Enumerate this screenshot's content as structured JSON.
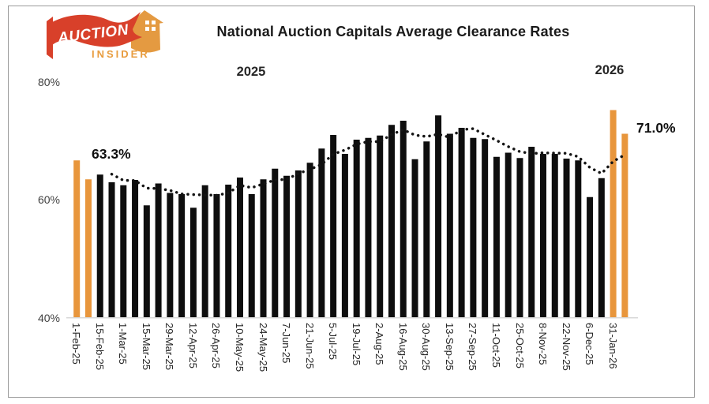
{
  "branding": {
    "logo_text_primary": "AUCTION",
    "logo_text_secondary": "INSIDER",
    "flag_color": "#D8402A",
    "house_color": "#E49A41",
    "insider_color": "#E89C3E"
  },
  "header": {
    "title": "National Auction Capitals Average Clearance Rates"
  },
  "chart_data": {
    "type": "bar",
    "title": "National Auction Capitals Average Clearance Rates",
    "year_labels": [
      "2025",
      "2026"
    ],
    "y_axis": {
      "unit": "%",
      "min": 40,
      "max": 80,
      "ticks": [
        80,
        60,
        40
      ],
      "tick_labels": [
        "80%",
        "60%",
        "40%"
      ]
    },
    "x_tick_labels": [
      "1-Feb-25",
      "15-Feb-25",
      "1-Mar-25",
      "15-Mar-25",
      "29-Mar-25",
      "12-Apr-25",
      "26-Apr-25",
      "10-May-25",
      "24-May-25",
      "7-Jun-25",
      "21-Jun-25",
      "5-Jul-25",
      "19-Jul-25",
      "2-Aug-25",
      "16-Aug-25",
      "30-Aug-25",
      "13-Sep-25",
      "27-Sep-25",
      "11-Oct-25",
      "25-Oct-25",
      "8-Nov-25",
      "22-Nov-25",
      "6-Dec-25",
      "31-Jan-26"
    ],
    "x_tick_every_n_bars": 2,
    "values": [
      66.5,
      63.3,
      64.1,
      62.8,
      62.3,
      63.2,
      58.9,
      62.6,
      61.0,
      60.8,
      58.5,
      62.3,
      60.8,
      62.4,
      63.6,
      60.8,
      63.3,
      65.1,
      63.9,
      64.8,
      66.1,
      68.5,
      70.8,
      67.6,
      70.0,
      70.3,
      70.7,
      72.5,
      73.2,
      66.7,
      69.7,
      74.1,
      71.0,
      72.0,
      70.3,
      70.1,
      67.1,
      67.8,
      66.9,
      68.8,
      67.6,
      67.6,
      66.8,
      66.5,
      60.3,
      63.5,
      75.0,
      71.0
    ],
    "highlighted_indices": [
      0,
      1,
      46,
      47
    ],
    "bar_color": "#0e0e0e",
    "highlight_color": "#E8963C",
    "axis_line_color": "#d8d8d8",
    "annotations": [
      {
        "text": "63.3%",
        "bar_index": 1
      },
      {
        "text": "71.0%",
        "bar_index": 47
      }
    ],
    "trendline": {
      "style": "dotted",
      "type": "moving_average",
      "period": 4,
      "color": "#141414"
    },
    "grid": "off",
    "legend": "none"
  }
}
